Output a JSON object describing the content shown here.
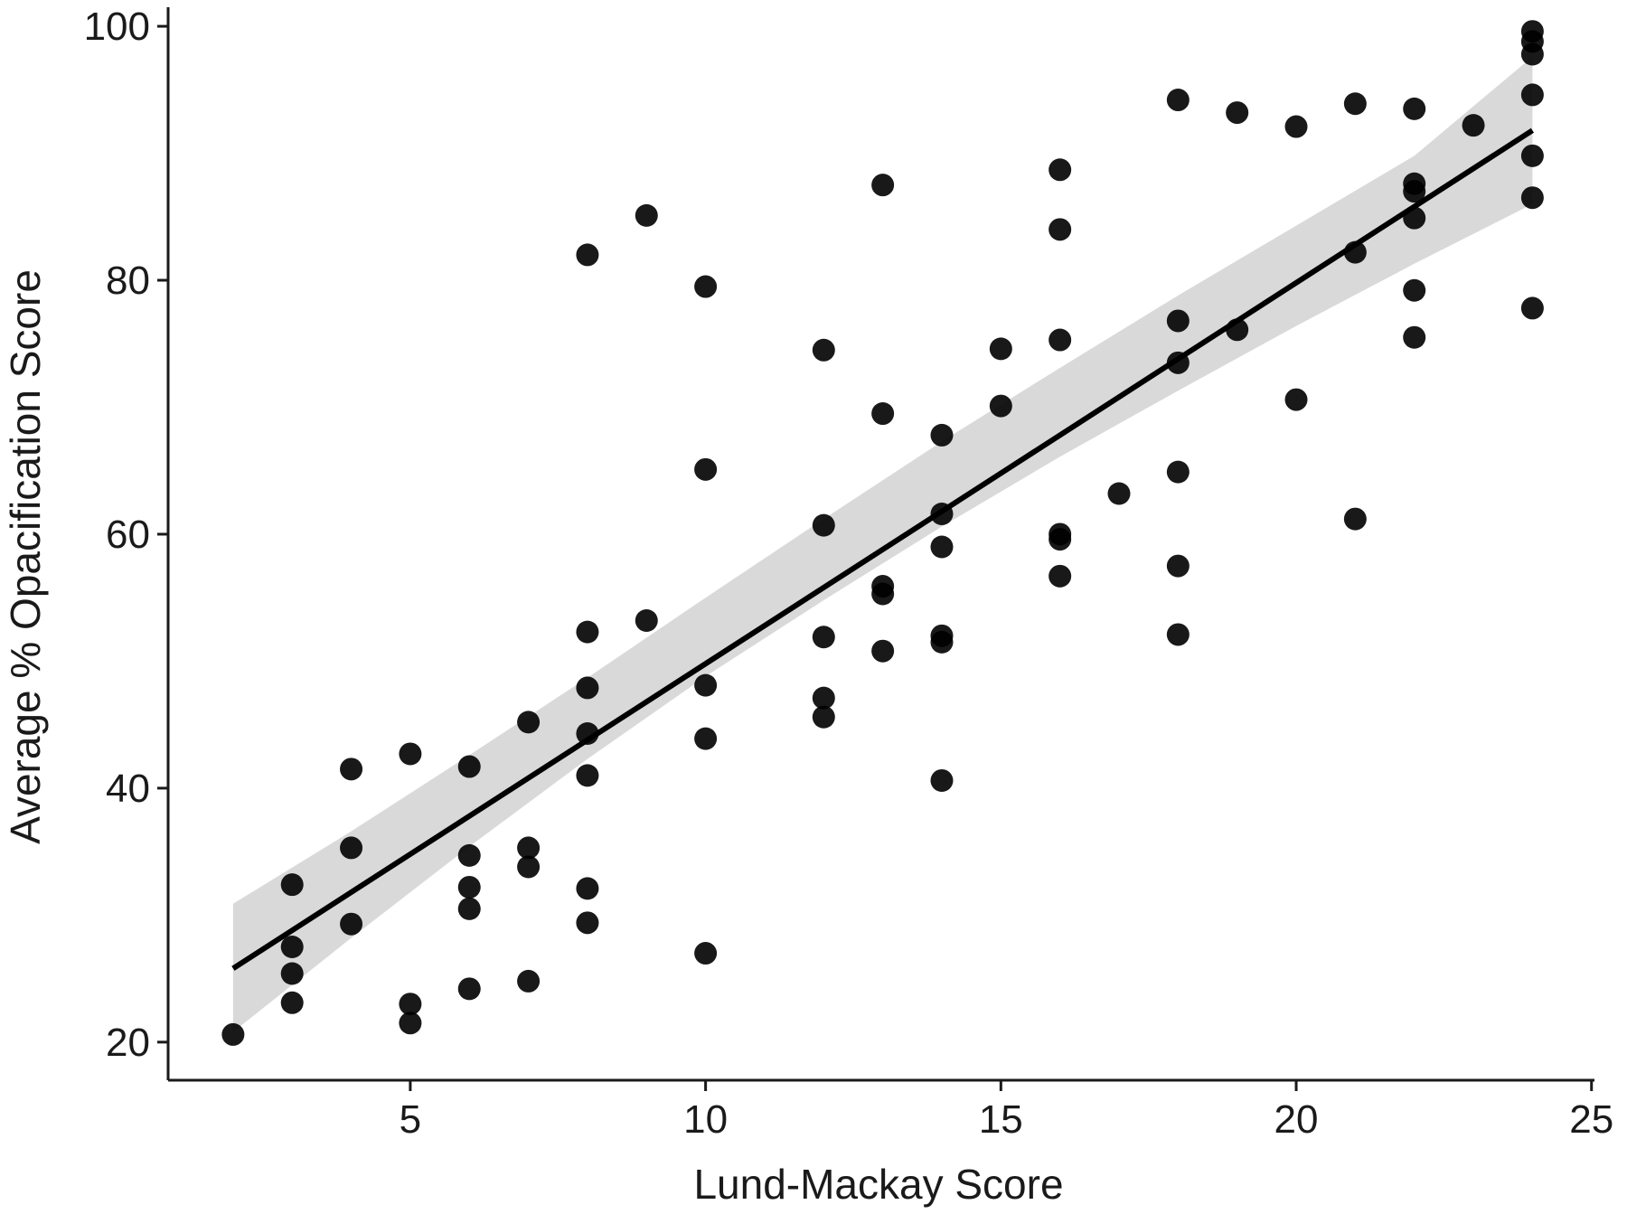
{
  "chart_data": {
    "type": "scatter",
    "title": "",
    "xlabel": "Lund-Mackay Score",
    "ylabel": "Average % Opacification Score",
    "xlim": [
      0.9,
      25.05
    ],
    "ylim": [
      17,
      101.5
    ],
    "xticks": [
      5,
      10,
      15,
      20,
      25
    ],
    "yticks": [
      20,
      40,
      60,
      80,
      100
    ],
    "xtick_labels": [
      "5",
      "10",
      "15",
      "20",
      "25"
    ],
    "ytick_labels": [
      "20",
      "40",
      "60",
      "80",
      "100"
    ],
    "grid": false,
    "legend": "none",
    "points": [
      [
        2,
        20.6
      ],
      [
        3,
        32.4
      ],
      [
        3,
        27.5
      ],
      [
        3,
        25.4
      ],
      [
        3,
        23.1
      ],
      [
        4,
        41.5
      ],
      [
        4,
        35.3
      ],
      [
        4,
        29.3
      ],
      [
        5,
        42.7
      ],
      [
        5,
        23.0
      ],
      [
        5,
        21.5
      ],
      [
        6,
        41.7
      ],
      [
        6,
        34.7
      ],
      [
        6,
        32.2
      ],
      [
        6,
        30.5
      ],
      [
        6,
        24.2
      ],
      [
        7,
        45.2
      ],
      [
        7,
        35.3
      ],
      [
        7,
        33.8
      ],
      [
        7,
        24.8
      ],
      [
        8,
        82.0
      ],
      [
        8,
        52.3
      ],
      [
        8,
        47.9
      ],
      [
        8,
        44.3
      ],
      [
        8,
        41.0
      ],
      [
        8,
        32.1
      ],
      [
        8,
        29.4
      ],
      [
        9,
        85.1
      ],
      [
        9,
        53.2
      ],
      [
        10,
        79.5
      ],
      [
        10,
        65.1
      ],
      [
        10,
        48.1
      ],
      [
        10,
        43.9
      ],
      [
        10,
        27.0
      ],
      [
        12,
        74.5
      ],
      [
        12,
        60.7
      ],
      [
        12,
        51.9
      ],
      [
        12,
        47.1
      ],
      [
        12,
        45.6
      ],
      [
        13,
        87.5
      ],
      [
        13,
        69.5
      ],
      [
        13,
        55.9
      ],
      [
        13,
        55.3
      ],
      [
        13,
        50.8
      ],
      [
        14,
        67.8
      ],
      [
        14,
        61.6
      ],
      [
        14,
        59.0
      ],
      [
        14,
        52.0
      ],
      [
        14,
        51.5
      ],
      [
        14,
        40.6
      ],
      [
        15,
        74.6
      ],
      [
        15,
        70.1
      ],
      [
        16,
        88.7
      ],
      [
        16,
        84.0
      ],
      [
        16,
        75.3
      ],
      [
        16,
        60.0
      ],
      [
        16,
        59.6
      ],
      [
        16,
        56.7
      ],
      [
        17,
        63.2
      ],
      [
        18,
        94.2
      ],
      [
        18,
        76.8
      ],
      [
        18,
        73.5
      ],
      [
        18,
        64.9
      ],
      [
        18,
        57.5
      ],
      [
        18,
        52.1
      ],
      [
        19,
        93.2
      ],
      [
        19,
        76.1
      ],
      [
        20,
        92.1
      ],
      [
        20,
        70.6
      ],
      [
        21,
        93.9
      ],
      [
        21,
        82.2
      ],
      [
        21,
        61.2
      ],
      [
        22,
        93.5
      ],
      [
        22,
        87.6
      ],
      [
        22,
        87.0
      ],
      [
        22,
        84.9
      ],
      [
        22,
        79.2
      ],
      [
        22,
        75.5
      ],
      [
        23,
        92.2
      ],
      [
        24,
        99.6
      ],
      [
        24,
        98.8
      ],
      [
        24,
        97.8
      ],
      [
        24,
        94.6
      ],
      [
        24,
        89.8
      ],
      [
        24,
        86.5
      ],
      [
        24,
        77.8
      ]
    ],
    "fit_line": {
      "x": [
        2,
        24
      ],
      "y": [
        25.8,
        91.8
      ]
    },
    "confidence_band": {
      "x": [
        2,
        4,
        6,
        8,
        10,
        12,
        14,
        16,
        18,
        20,
        22,
        24
      ],
      "lower": [
        20.8,
        28.2,
        35.4,
        42.3,
        48.8,
        54.8,
        60.6,
        66.1,
        71.3,
        76.4,
        81.3,
        86.0
      ],
      "upper": [
        30.9,
        36.6,
        42.6,
        48.7,
        55.0,
        61.2,
        67.3,
        73.1,
        78.8,
        84.3,
        89.8,
        97.6
      ]
    },
    "colors": {
      "points": "#000000",
      "line": "#000000",
      "band": "#d9d9d9",
      "axis": "#1a1a1a"
    }
  }
}
